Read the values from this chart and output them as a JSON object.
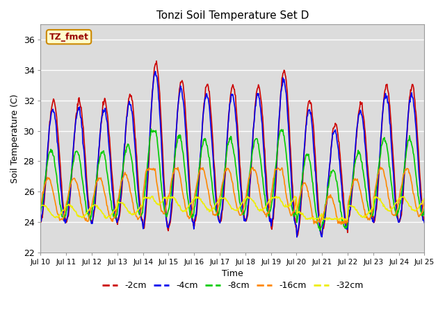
{
  "title": "Tonzi Soil Temperature Set D",
  "xlabel": "Time",
  "ylabel": "Soil Temperature (C)",
  "ylim": [
    22,
    37
  ],
  "xlim": [
    0,
    360
  ],
  "plot_bg_color": "#dcdcdc",
  "fig_bg_color": "#ffffff",
  "series_colors": {
    "-2cm": "#cc0000",
    "-4cm": "#0000ee",
    "-8cm": "#00cc00",
    "-16cm": "#ff8800",
    "-32cm": "#eeee00"
  },
  "annotation_text": "TZ_fmet",
  "annotation_bg": "#ffffcc",
  "annotation_border": "#cc8800",
  "tick_labels": [
    "Jul 10",
    "Jul 11",
    "Jul 12",
    "Jul 13",
    "Jul 14",
    "Jul 15",
    "Jul 16",
    "Jul 17",
    "Jul 18",
    "Jul 19",
    "Jul 20",
    "Jul 21",
    "Jul 22",
    "Jul 23",
    "Jul 24",
    "Jul 25"
  ],
  "tick_positions": [
    0,
    24,
    48,
    72,
    96,
    120,
    144,
    168,
    192,
    216,
    240,
    264,
    288,
    312,
    336,
    360
  ],
  "yticks": [
    22,
    24,
    26,
    28,
    30,
    32,
    34,
    36
  ],
  "line_width": 1.2
}
